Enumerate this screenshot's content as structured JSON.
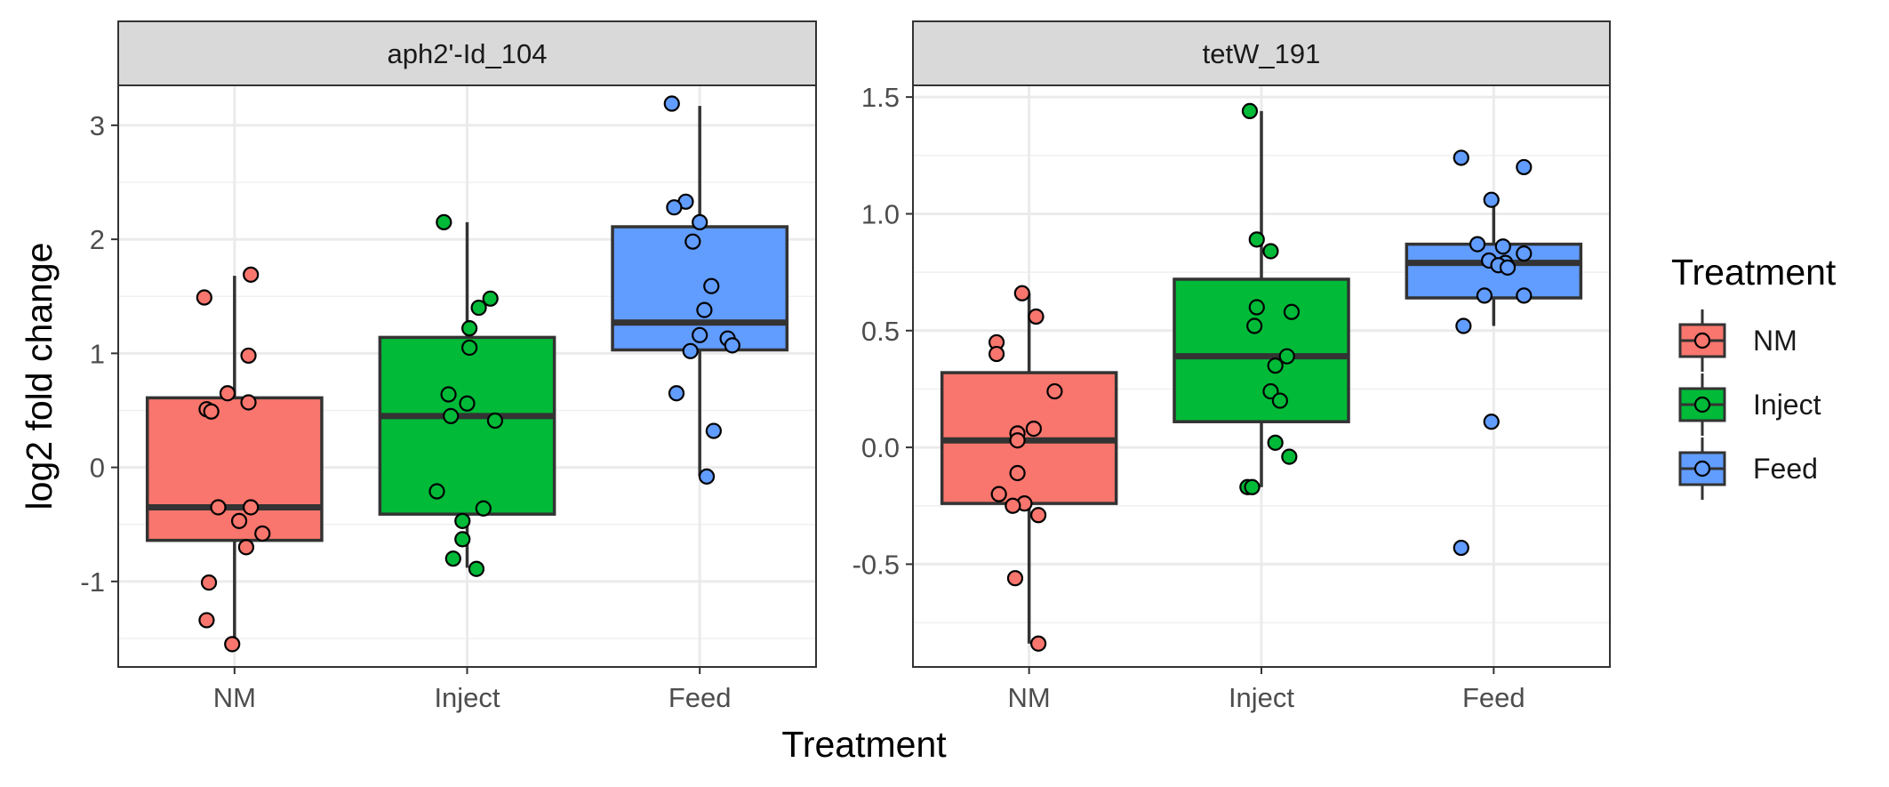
{
  "chart_data": {
    "type": "box",
    "xlabel": "Treatment",
    "ylabel": "log2 fold change",
    "categories": [
      "NM",
      "Inject",
      "Feed"
    ],
    "colors": {
      "NM": "#F8766D",
      "Inject": "#00BA38",
      "Feed": "#619CFF"
    },
    "legend": {
      "title": "Treatment",
      "position": "right",
      "items": [
        "NM",
        "Inject",
        "Feed"
      ]
    },
    "grid": true,
    "facets": [
      {
        "title": "aph2'-Id_104",
        "ylim": [
          -1.75,
          3.35
        ],
        "yticks": [
          3,
          2,
          1,
          0,
          -1
        ],
        "ytick_labels": [
          "3",
          "2",
          "1",
          "0",
          "-1"
        ],
        "boxes": [
          {
            "group": "NM",
            "whisker_low": -1.55,
            "q1": -0.64,
            "median": -0.35,
            "q3": 0.61,
            "whisker_high": 1.68
          },
          {
            "group": "Inject",
            "whisker_low": -0.88,
            "q1": -0.41,
            "median": 0.45,
            "q3": 1.14,
            "whisker_high": 2.15
          },
          {
            "group": "Feed",
            "whisker_low": -0.08,
            "q1": 1.03,
            "median": 1.27,
            "q3": 2.11,
            "whisker_high": 3.17
          }
        ],
        "points": [
          {
            "group": "NM",
            "x_offset": -0.13,
            "y": 1.49
          },
          {
            "group": "NM",
            "x_offset": 0.07,
            "y": 1.69
          },
          {
            "group": "NM",
            "x_offset": 0.06,
            "y": 0.98
          },
          {
            "group": "NM",
            "x_offset": -0.03,
            "y": 0.65
          },
          {
            "group": "NM",
            "x_offset": 0.06,
            "y": 0.57
          },
          {
            "group": "NM",
            "x_offset": -0.12,
            "y": 0.51
          },
          {
            "group": "NM",
            "x_offset": -0.1,
            "y": 0.49
          },
          {
            "group": "NM",
            "x_offset": -0.07,
            "y": -0.35
          },
          {
            "group": "NM",
            "x_offset": 0.07,
            "y": -0.35
          },
          {
            "group": "NM",
            "x_offset": 0.02,
            "y": -0.47
          },
          {
            "group": "NM",
            "x_offset": 0.12,
            "y": -0.58
          },
          {
            "group": "NM",
            "x_offset": 0.05,
            "y": -0.7
          },
          {
            "group": "NM",
            "x_offset": -0.11,
            "y": -1.01
          },
          {
            "group": "NM",
            "x_offset": -0.12,
            "y": -1.34
          },
          {
            "group": "NM",
            "x_offset": -0.01,
            "y": -1.55
          },
          {
            "group": "Inject",
            "x_offset": -0.1,
            "y": 2.15
          },
          {
            "group": "Inject",
            "x_offset": 0.1,
            "y": 1.48
          },
          {
            "group": "Inject",
            "x_offset": 0.05,
            "y": 1.4
          },
          {
            "group": "Inject",
            "x_offset": 0.01,
            "y": 1.22
          },
          {
            "group": "Inject",
            "x_offset": 0.01,
            "y": 1.05
          },
          {
            "group": "Inject",
            "x_offset": -0.08,
            "y": 0.64
          },
          {
            "group": "Inject",
            "x_offset": 0.0,
            "y": 0.56
          },
          {
            "group": "Inject",
            "x_offset": -0.07,
            "y": 0.45
          },
          {
            "group": "Inject",
            "x_offset": 0.12,
            "y": 0.41
          },
          {
            "group": "Inject",
            "x_offset": -0.13,
            "y": -0.21
          },
          {
            "group": "Inject",
            "x_offset": 0.07,
            "y": -0.36
          },
          {
            "group": "Inject",
            "x_offset": -0.02,
            "y": -0.47
          },
          {
            "group": "Inject",
            "x_offset": -0.02,
            "y": -0.63
          },
          {
            "group": "Inject",
            "x_offset": -0.06,
            "y": -0.8
          },
          {
            "group": "Inject",
            "x_offset": 0.04,
            "y": -0.89
          },
          {
            "group": "Feed",
            "x_offset": -0.12,
            "y": 3.19
          },
          {
            "group": "Feed",
            "x_offset": -0.06,
            "y": 2.33
          },
          {
            "group": "Feed",
            "x_offset": -0.11,
            "y": 2.28
          },
          {
            "group": "Feed",
            "x_offset": 0.0,
            "y": 2.15
          },
          {
            "group": "Feed",
            "x_offset": -0.03,
            "y": 1.98
          },
          {
            "group": "Feed",
            "x_offset": 0.05,
            "y": 1.59
          },
          {
            "group": "Feed",
            "x_offset": 0.02,
            "y": 1.38
          },
          {
            "group": "Feed",
            "x_offset": 0.0,
            "y": 1.16
          },
          {
            "group": "Feed",
            "x_offset": 0.12,
            "y": 1.13
          },
          {
            "group": "Feed",
            "x_offset": 0.14,
            "y": 1.07
          },
          {
            "group": "Feed",
            "x_offset": -0.04,
            "y": 1.02
          },
          {
            "group": "Feed",
            "x_offset": -0.1,
            "y": 0.65
          },
          {
            "group": "Feed",
            "x_offset": 0.06,
            "y": 0.32
          },
          {
            "group": "Feed",
            "x_offset": 0.03,
            "y": -0.08
          }
        ]
      },
      {
        "title": "tetW_191",
        "ylim": [
          -0.94,
          1.55
        ],
        "yticks": [
          1.5,
          1.0,
          0.5,
          0.0,
          -0.5
        ],
        "ytick_labels": [
          "1.5",
          "1.0",
          "0.5",
          "0.0",
          "-0.5"
        ],
        "boxes": [
          {
            "group": "NM",
            "whisker_low": -0.84,
            "q1": -0.24,
            "median": 0.03,
            "q3": 0.32,
            "whisker_high": 0.66
          },
          {
            "group": "Inject",
            "whisker_low": -0.17,
            "q1": 0.11,
            "median": 0.39,
            "q3": 0.72,
            "whisker_high": 1.44
          },
          {
            "group": "Feed",
            "whisker_low": 0.52,
            "q1": 0.64,
            "median": 0.79,
            "q3": 0.87,
            "whisker_high": 1.06
          }
        ],
        "points": [
          {
            "group": "NM",
            "x_offset": -0.03,
            "y": 0.66
          },
          {
            "group": "NM",
            "x_offset": 0.03,
            "y": 0.56
          },
          {
            "group": "NM",
            "x_offset": -0.14,
            "y": 0.45
          },
          {
            "group": "NM",
            "x_offset": -0.14,
            "y": 0.4
          },
          {
            "group": "NM",
            "x_offset": 0.11,
            "y": 0.24
          },
          {
            "group": "NM",
            "x_offset": 0.02,
            "y": 0.08
          },
          {
            "group": "NM",
            "x_offset": -0.05,
            "y": 0.06
          },
          {
            "group": "NM",
            "x_offset": -0.05,
            "y": 0.03
          },
          {
            "group": "NM",
            "x_offset": -0.05,
            "y": -0.11
          },
          {
            "group": "NM",
            "x_offset": -0.13,
            "y": -0.2
          },
          {
            "group": "NM",
            "x_offset": -0.02,
            "y": -0.24
          },
          {
            "group": "NM",
            "x_offset": -0.07,
            "y": -0.25
          },
          {
            "group": "NM",
            "x_offset": 0.04,
            "y": -0.29
          },
          {
            "group": "NM",
            "x_offset": -0.06,
            "y": -0.56
          },
          {
            "group": "NM",
            "x_offset": 0.04,
            "y": -0.84
          },
          {
            "group": "Inject",
            "x_offset": -0.05,
            "y": 1.44
          },
          {
            "group": "Inject",
            "x_offset": -0.02,
            "y": 0.89
          },
          {
            "group": "Inject",
            "x_offset": 0.04,
            "y": 0.84
          },
          {
            "group": "Inject",
            "x_offset": -0.02,
            "y": 0.6
          },
          {
            "group": "Inject",
            "x_offset": 0.13,
            "y": 0.58
          },
          {
            "group": "Inject",
            "x_offset": -0.03,
            "y": 0.52
          },
          {
            "group": "Inject",
            "x_offset": 0.11,
            "y": 0.39
          },
          {
            "group": "Inject",
            "x_offset": 0.06,
            "y": 0.35
          },
          {
            "group": "Inject",
            "x_offset": 0.04,
            "y": 0.24
          },
          {
            "group": "Inject",
            "x_offset": 0.08,
            "y": 0.2
          },
          {
            "group": "Inject",
            "x_offset": 0.06,
            "y": 0.02
          },
          {
            "group": "Inject",
            "x_offset": 0.12,
            "y": -0.04
          },
          {
            "group": "Inject",
            "x_offset": -0.06,
            "y": -0.17
          },
          {
            "group": "Inject",
            "x_offset": -0.04,
            "y": -0.17
          },
          {
            "group": "Feed",
            "x_offset": -0.14,
            "y": 1.24
          },
          {
            "group": "Feed",
            "x_offset": 0.13,
            "y": 1.2
          },
          {
            "group": "Feed",
            "x_offset": -0.01,
            "y": 1.06
          },
          {
            "group": "Feed",
            "x_offset": -0.07,
            "y": 0.87
          },
          {
            "group": "Feed",
            "x_offset": 0.04,
            "y": 0.86
          },
          {
            "group": "Feed",
            "x_offset": 0.13,
            "y": 0.83
          },
          {
            "group": "Feed",
            "x_offset": -0.02,
            "y": 0.8
          },
          {
            "group": "Feed",
            "x_offset": 0.05,
            "y": 0.79
          },
          {
            "group": "Feed",
            "x_offset": 0.02,
            "y": 0.78
          },
          {
            "group": "Feed",
            "x_offset": 0.06,
            "y": 0.77
          },
          {
            "group": "Feed",
            "x_offset": -0.04,
            "y": 0.65
          },
          {
            "group": "Feed",
            "x_offset": 0.13,
            "y": 0.65
          },
          {
            "group": "Feed",
            "x_offset": -0.13,
            "y": 0.52
          },
          {
            "group": "Feed",
            "x_offset": -0.01,
            "y": 0.11
          },
          {
            "group": "Feed",
            "x_offset": -0.14,
            "y": -0.43
          }
        ]
      }
    ]
  }
}
